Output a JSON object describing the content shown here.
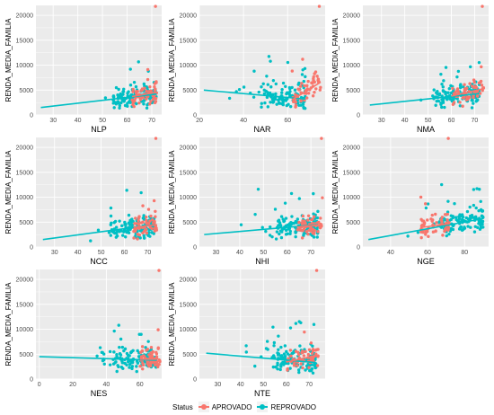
{
  "colors": {
    "aprovado": "#F8766D",
    "reprovado": "#00BFC4",
    "panel_bg": "#EBEBEB",
    "grid": "#FFFFFF"
  },
  "legend": {
    "title": "Status",
    "items": [
      {
        "label": "APROVADO",
        "color": "#F8766D"
      },
      {
        "label": "REPROVADO",
        "color": "#00BFC4"
      }
    ]
  },
  "chart_data": [
    {
      "type": "scatter",
      "xlabel": "NLP",
      "ylabel": "RENDA_MEDIA_FAMILIA",
      "xlim": [
        23,
        74
      ],
      "ylim": [
        0,
        22000
      ],
      "xticks": [
        30,
        40,
        50,
        60,
        70
      ],
      "yticks": [
        0,
        5000,
        10000,
        15000,
        20000
      ],
      "grid": true,
      "fits": {
        "APROVADO": {
          "x": [
            62,
            72
          ],
          "y": [
            3700,
            4600
          ]
        },
        "REPROVADO": {
          "x": [
            25,
            72
          ],
          "y": [
            1500,
            4200
          ]
        }
      },
      "seed": 11
    },
    {
      "type": "scatter",
      "xlabel": "NAR",
      "ylabel": "RENDA_MEDIA_FAMILIA",
      "xlim": [
        20,
        77
      ],
      "ylim": [
        0,
        22000
      ],
      "xticks": [
        20,
        40,
        60
      ],
      "yticks": [
        0,
        5000,
        10000,
        15000,
        20000
      ],
      "grid": true,
      "fits": {
        "APROVADO": {
          "x": [
            62,
            75
          ],
          "y": [
            3000,
            6600
          ]
        },
        "REPROVADO": {
          "x": [
            22,
            68
          ],
          "y": [
            5000,
            3200
          ]
        }
      },
      "seed": 23
    },
    {
      "type": "scatter",
      "xlabel": "NMA",
      "ylabel": "RENDA_MEDIA_FAMILIA",
      "xlim": [
        22,
        76
      ],
      "ylim": [
        0,
        22000
      ],
      "xticks": [
        30,
        40,
        50,
        60,
        70
      ],
      "yticks": [
        0,
        5000,
        10000,
        15000,
        20000
      ],
      "grid": true,
      "fits": {
        "APROVADO": {
          "x": [
            60,
            74
          ],
          "y": [
            3800,
            5300
          ]
        },
        "REPROVADO": {
          "x": [
            25,
            72
          ],
          "y": [
            2000,
            4300
          ]
        }
      },
      "seed": 37
    },
    {
      "type": "scatter",
      "xlabel": "NCC",
      "ylabel": "RENDA_MEDIA_FAMILIA",
      "xlim": [
        22,
        76
      ],
      "ylim": [
        0,
        22000
      ],
      "xticks": [
        30,
        40,
        50,
        60,
        70
      ],
      "yticks": [
        0,
        5000,
        10000,
        15000,
        20000
      ],
      "grid": true,
      "fits": {
        "APROVADO": {
          "x": [
            64,
            74
          ],
          "y": [
            3900,
            4500
          ]
        },
        "REPROVADO": {
          "x": [
            25,
            73
          ],
          "y": [
            1500,
            4500
          ]
        }
      },
      "seed": 41
    },
    {
      "type": "scatter",
      "xlabel": "NHI",
      "ylabel": "RENDA_MEDIA_FAMILIA",
      "xlim": [
        23,
        76
      ],
      "ylim": [
        0,
        22000
      ],
      "xticks": [
        30,
        40,
        50,
        60,
        70
      ],
      "yticks": [
        0,
        5000,
        10000,
        15000,
        20000
      ],
      "grid": true,
      "fits": {
        "APROVADO": {
          "x": [
            64,
            75
          ],
          "y": [
            4000,
            4500
          ]
        },
        "REPROVADO": {
          "x": [
            25,
            73
          ],
          "y": [
            2500,
            4500
          ]
        }
      },
      "seed": 53
    },
    {
      "type": "scatter",
      "xlabel": "NGE",
      "ylabel": "RENDA_MEDIA_FAMILIA",
      "xlim": [
        25,
        93
      ],
      "ylim": [
        0,
        22000
      ],
      "xticks": [
        40,
        60,
        80
      ],
      "yticks": [
        0,
        5000,
        10000,
        15000,
        20000
      ],
      "grid": true,
      "fits": {
        "APROVADO": {
          "x": [
            56,
            72
          ],
          "y": [
            3900,
            4700
          ]
        },
        "REPROVADO": {
          "x": [
            28,
            90
          ],
          "y": [
            1500,
            5700
          ]
        }
      },
      "seed": 67
    },
    {
      "type": "scatter",
      "xlabel": "NES",
      "ylabel": "RENDA_MEDIA_FAMILIA",
      "xlim": [
        -2,
        73
      ],
      "ylim": [
        0,
        22000
      ],
      "xticks": [
        0,
        20,
        40,
        60
      ],
      "yticks": [
        0,
        5000,
        10000,
        15000,
        20000
      ],
      "grid": true,
      "fits": {
        "APROVADO": {
          "x": [
            60,
            72
          ],
          "y": [
            4000,
            4000
          ]
        },
        "REPROVADO": {
          "x": [
            0,
            70
          ],
          "y": [
            4500,
            3800
          ]
        }
      },
      "seed": 79
    },
    {
      "type": "scatter",
      "xlabel": "NTE",
      "ylabel": "RENDA_MEDIA_FAMILIA",
      "xlim": [
        22,
        77
      ],
      "ylim": [
        0,
        22000
      ],
      "xticks": [
        30,
        40,
        50,
        60,
        70
      ],
      "yticks": [
        0,
        5000,
        10000,
        15000,
        20000
      ],
      "grid": true,
      "fits": {
        "APROVADO": {
          "x": [
            60,
            74
          ],
          "y": [
            3400,
            4800
          ]
        },
        "REPROVADO": {
          "x": [
            25,
            73
          ],
          "y": [
            5200,
            3300
          ]
        }
      },
      "seed": 97
    }
  ]
}
